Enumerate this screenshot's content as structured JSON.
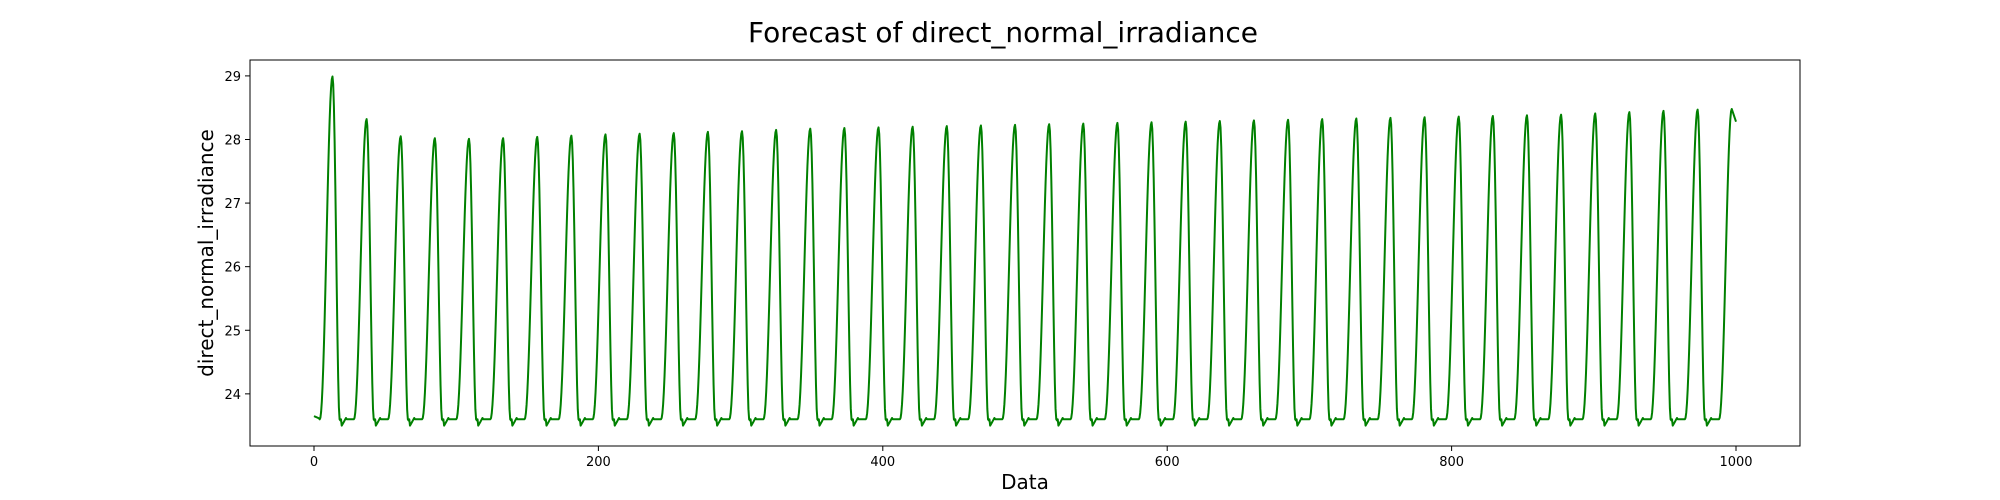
{
  "chart_data": {
    "type": "line",
    "title": "Forecast of direct_normal_irradiance",
    "xlabel": "Data",
    "ylabel": "direct_normal_irradiance",
    "xlim": [
      -45,
      1045
    ],
    "ylim": [
      23.18,
      29.25
    ],
    "x_ticks": [
      0,
      200,
      400,
      600,
      800,
      1000
    ],
    "y_ticks": [
      24,
      25,
      26,
      27,
      28,
      29
    ],
    "grid": false,
    "legend": "none",
    "line_color": "#008000",
    "series": [
      {
        "x_start": 0,
        "x_end": 1000,
        "cycle_length": 24,
        "baseline": 23.6,
        "start_value": 23.65,
        "peak_x": [
          13,
          37,
          61,
          85,
          109,
          133,
          157,
          181,
          205,
          229,
          253,
          277,
          301,
          325,
          349,
          373,
          397,
          421,
          445,
          469,
          493,
          517,
          541,
          565,
          589,
          613,
          637,
          661,
          685,
          709,
          733,
          757,
          781,
          805,
          829,
          853,
          877,
          901,
          925,
          949,
          973,
          997
        ],
        "peak_values": [
          28.99,
          28.32,
          28.05,
          28.02,
          28.01,
          28.02,
          28.04,
          28.06,
          28.08,
          28.09,
          28.1,
          28.12,
          28.13,
          28.15,
          28.17,
          28.18,
          28.19,
          28.2,
          28.21,
          28.22,
          28.23,
          28.24,
          28.25,
          28.26,
          28.27,
          28.28,
          28.29,
          28.3,
          28.31,
          28.32,
          28.33,
          28.34,
          28.35,
          28.36,
          28.37,
          28.38,
          28.39,
          28.41,
          28.43,
          28.45,
          28.47,
          28.48
        ],
        "end_value": 28.28
      }
    ]
  }
}
